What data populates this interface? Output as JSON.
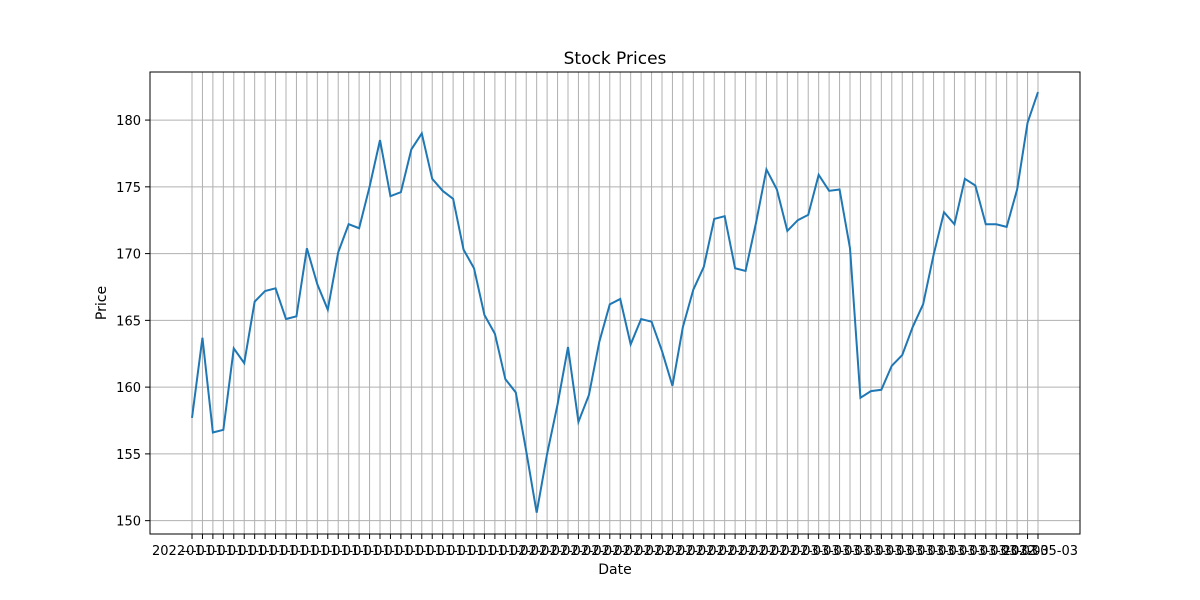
{
  "chart_data": {
    "type": "line",
    "title": "Stock Prices",
    "xlabel": "Date",
    "ylabel": "Price",
    "grid": true,
    "ylim": [
      149.0,
      183.6
    ],
    "yticks": [
      150,
      155,
      160,
      165,
      170,
      175,
      180
    ],
    "x_first_tick_label": "2022-",
    "x_last_tick_label": "2022-05-03",
    "x_label_note": "Dense overlapping daily date tick labels; only fragments legible",
    "x": [
      "2022-01-01",
      "2022-01-02",
      "2022-01-03",
      "2022-01-04",
      "2022-01-05",
      "2022-01-06",
      "2022-01-07",
      "2022-01-08",
      "2022-01-09",
      "2022-01-10",
      "2022-01-11",
      "2022-01-12",
      "2022-01-13",
      "2022-01-14",
      "2022-01-15",
      "2022-01-16",
      "2022-01-17",
      "2022-01-18",
      "2022-01-19",
      "2022-01-20",
      "2022-01-21",
      "2022-01-22",
      "2022-01-23",
      "2022-01-24",
      "2022-01-25",
      "2022-01-26",
      "2022-01-27",
      "2022-01-28",
      "2022-01-29",
      "2022-01-30",
      "2022-01-31",
      "2022-02-01",
      "2022-02-02",
      "2022-02-03",
      "2022-02-04",
      "2022-02-05",
      "2022-02-06",
      "2022-02-07",
      "2022-02-08",
      "2022-02-09",
      "2022-02-10",
      "2022-02-11",
      "2022-02-12",
      "2022-02-13",
      "2022-02-14",
      "2022-02-15",
      "2022-02-16",
      "2022-02-17",
      "2022-02-18",
      "2022-02-19",
      "2022-02-20",
      "2022-02-21",
      "2022-02-22",
      "2022-02-23",
      "2022-02-24",
      "2022-02-25",
      "2022-02-26",
      "2022-02-27",
      "2022-02-28",
      "2022-03-01",
      "2022-03-02",
      "2022-03-03",
      "2022-03-04",
      "2022-03-05",
      "2022-03-06",
      "2022-03-07",
      "2022-03-08",
      "2022-03-09",
      "2022-03-10",
      "2022-03-11",
      "2022-03-12",
      "2022-03-13",
      "2022-03-14",
      "2022-03-15",
      "2022-03-16",
      "2022-03-17",
      "2022-03-18",
      "2022-03-19",
      "2022-03-20",
      "2022-03-21",
      "2022-03-22",
      "2022-03-23"
    ],
    "series": [
      {
        "color": "#1f77b4",
        "values": [
          157.7,
          163.7,
          156.6,
          156.8,
          162.9,
          161.8,
          166.4,
          167.2,
          167.4,
          165.1,
          165.3,
          170.4,
          167.7,
          165.8,
          170.1,
          172.2,
          171.9,
          175.0,
          178.5,
          174.3,
          174.6,
          177.8,
          179.0,
          175.6,
          174.7,
          174.1,
          170.3,
          168.9,
          165.4,
          164.0,
          160.6,
          159.6,
          155.2,
          150.6,
          155.0,
          158.7,
          163.0,
          157.4,
          159.4,
          163.4,
          166.2,
          166.6,
          163.2,
          165.1,
          164.9,
          162.7,
          160.1,
          164.5,
          167.3,
          169.0,
          172.6,
          172.8,
          168.9,
          168.7,
          172.3,
          176.3,
          174.8,
          171.7,
          172.5,
          172.9,
          175.9,
          174.7,
          174.8,
          170.4,
          159.2,
          159.7,
          159.8,
          161.6,
          162.4,
          164.5,
          166.2,
          169.9,
          173.1,
          172.2,
          175.6,
          175.1,
          172.2,
          172.2,
          172.0,
          174.8,
          179.8,
          182.1
        ]
      }
    ]
  }
}
